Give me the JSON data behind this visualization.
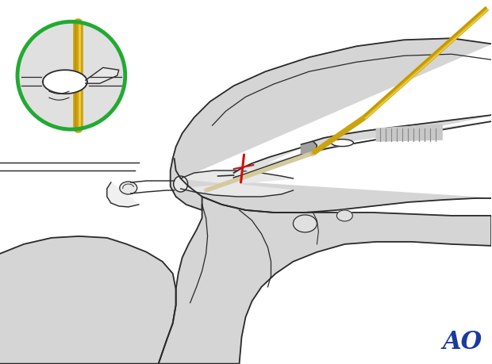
{
  "bg_color": "#ffffff",
  "hand_color": "#d5d5d5",
  "hand_outline": "#2a2a2a",
  "bone_color": "#e0e0e0",
  "wire_gold_dark": "#b8960a",
  "wire_gold_mid": "#d4aa10",
  "wire_gold_light": "#f0cc40",
  "wire_cream": "#e8ddb0",
  "red_color": "#cc1111",
  "green_color": "#22aa33",
  "inset_bg": "#e0e0e0",
  "ao_color": "#1a3a9e",
  "lw": 1.3
}
